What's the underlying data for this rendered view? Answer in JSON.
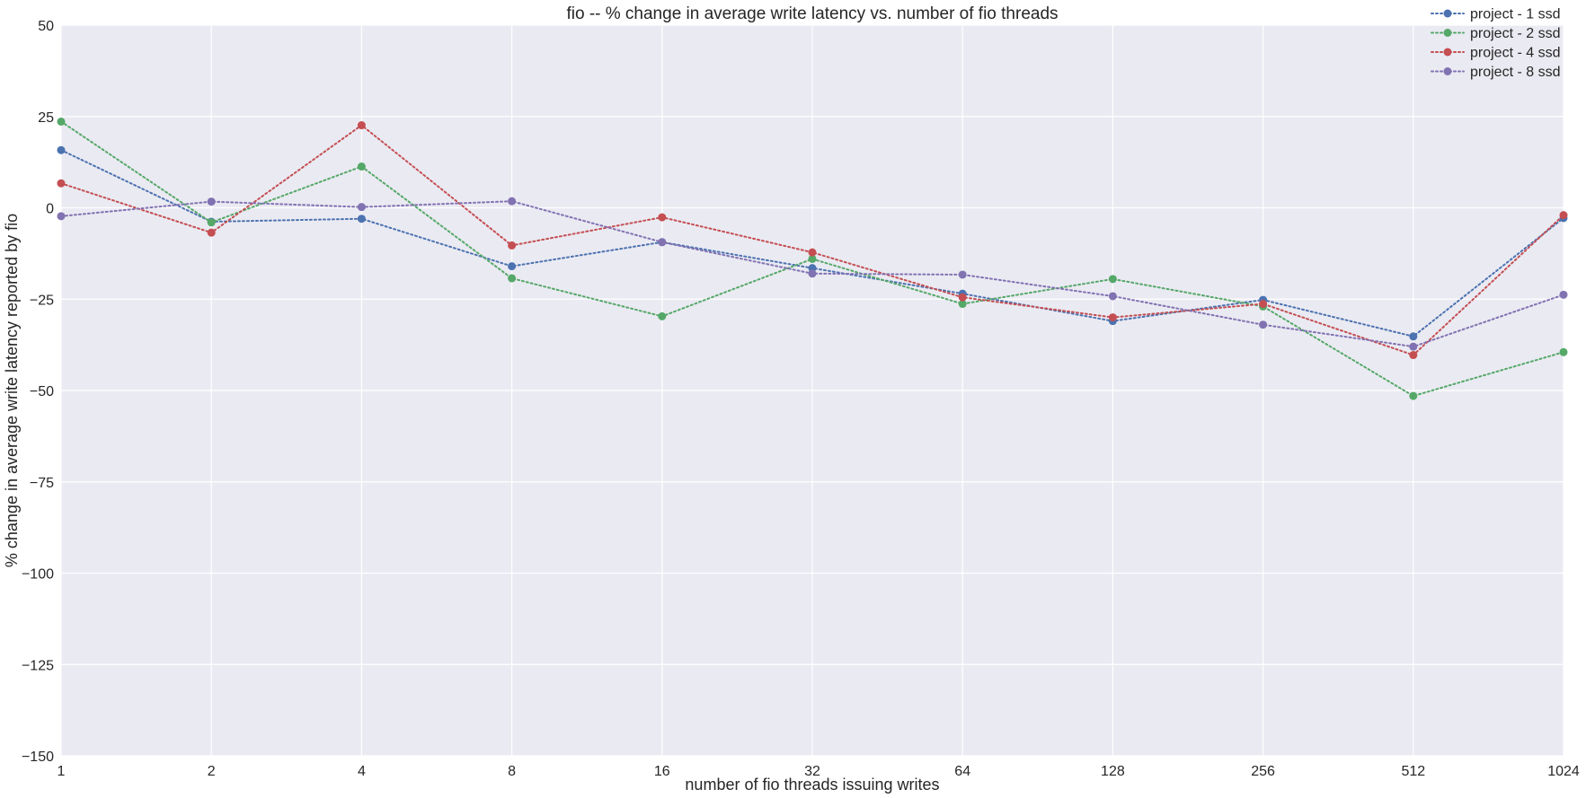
{
  "chart_data": {
    "type": "line",
    "title": "fio -- % change in average write latency vs. number of fio threads",
    "xlabel": "number of fio threads issuing writes",
    "ylabel": "% change in average write latency reported by fio",
    "x_scale": "log2",
    "x": [
      1,
      2,
      4,
      8,
      16,
      32,
      64,
      128,
      256,
      512,
      1024
    ],
    "x_tick_labels": [
      "1",
      "2",
      "4",
      "8",
      "16",
      "32",
      "64",
      "128",
      "256",
      "512",
      "1024"
    ],
    "ylim": [
      -150,
      50
    ],
    "y_ticks": [
      -150,
      -125,
      -100,
      -75,
      -50,
      -25,
      0,
      25,
      50
    ],
    "y_tick_labels": [
      "−150",
      "−125",
      "−100",
      "−75",
      "−50",
      "−25",
      "0",
      "25",
      "50"
    ],
    "grid": true,
    "background": "#eaeaf2",
    "legend_position": "top-right",
    "series": [
      {
        "name": "project - 1 ssd",
        "color": "#4c72b0",
        "values": [
          15.8,
          -3.8,
          -3.0,
          -16.0,
          -9.4,
          -16.5,
          -23.5,
          -31.0,
          -25.2,
          -35.2,
          -2.8
        ]
      },
      {
        "name": "project - 2 ssd",
        "color": "#55a868",
        "values": [
          23.6,
          -4.0,
          11.3,
          -19.3,
          -29.7,
          -14.0,
          -26.3,
          -19.5,
          -27.0,
          -51.5,
          -39.5
        ]
      },
      {
        "name": "project - 4 ssd",
        "color": "#c44e52",
        "values": [
          6.7,
          -6.8,
          22.6,
          -10.3,
          -2.6,
          -12.2,
          -24.5,
          -30.0,
          -26.3,
          -40.3,
          -2.0
        ]
      },
      {
        "name": "project - 8 ssd",
        "color": "#8172b2",
        "values": [
          -2.3,
          1.7,
          0.2,
          1.8,
          -9.4,
          -18.0,
          -18.3,
          -24.2,
          -32.0,
          -38.0,
          -23.8
        ]
      }
    ]
  }
}
